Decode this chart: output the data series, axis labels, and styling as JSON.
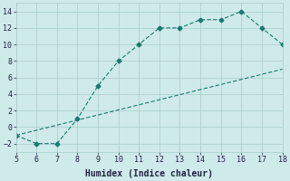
{
  "xlabel": "Humidex (Indice chaleur)",
  "line1_x": [
    5,
    6,
    7,
    8,
    9,
    10,
    11,
    12,
    13,
    14,
    15,
    16,
    17,
    18
  ],
  "line1_y": [
    -1,
    -2,
    -2,
    1,
    5,
    8,
    10,
    12,
    12,
    13,
    13,
    14,
    12,
    10
  ],
  "line2_x": [
    5,
    18
  ],
  "line2_y": [
    -1,
    7
  ],
  "xlim": [
    5,
    18
  ],
  "ylim": [
    -3,
    15
  ],
  "xticks": [
    5,
    6,
    7,
    8,
    9,
    10,
    11,
    12,
    13,
    14,
    15,
    16,
    17,
    18
  ],
  "yticks": [
    -2,
    0,
    2,
    4,
    6,
    8,
    10,
    12,
    14
  ],
  "line_color": "#1a7a6e",
  "marker": "D",
  "marker_size": 2.5,
  "bg_color": "#ceeaea",
  "grid_color": "#aacccc",
  "font_color": "#222244",
  "font_family": "monospace",
  "tick_fontsize": 6,
  "xlabel_fontsize": 7
}
